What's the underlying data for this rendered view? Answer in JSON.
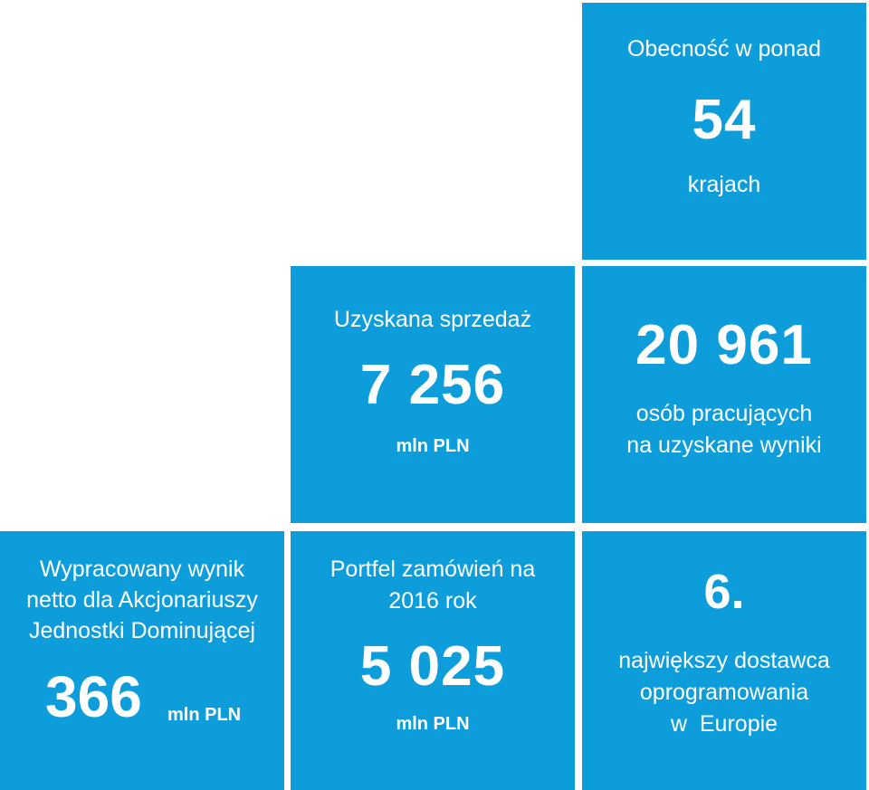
{
  "tiles": {
    "countries": {
      "line1": "Obecność w ponad",
      "value": "54",
      "line2": "krajach"
    },
    "sales": {
      "line1": "Uzyskana sprzedaż",
      "value": "7 256",
      "unit": "mln PLN"
    },
    "employees": {
      "value": "20 961",
      "line1": "osób pracujących",
      "line2": "na uzyskane wyniki"
    },
    "net_result": {
      "line1": "Wypracowany wynik",
      "line2": "netto dla Akcjonariuszy",
      "line3": "Jednostki Dominującej",
      "value": "366",
      "unit": "mln PLN"
    },
    "orders": {
      "line1": "Portfel zamówień na",
      "line2": "2016 rok",
      "value": "5 025",
      "unit": "mln PLN"
    },
    "rank": {
      "value": "6.",
      "line1": "największy dostawca",
      "line2": "oprogramowania",
      "line3": "w  Europie"
    }
  },
  "colors": {
    "tile_background": "#0d9ddb",
    "text": "#ffffff"
  }
}
